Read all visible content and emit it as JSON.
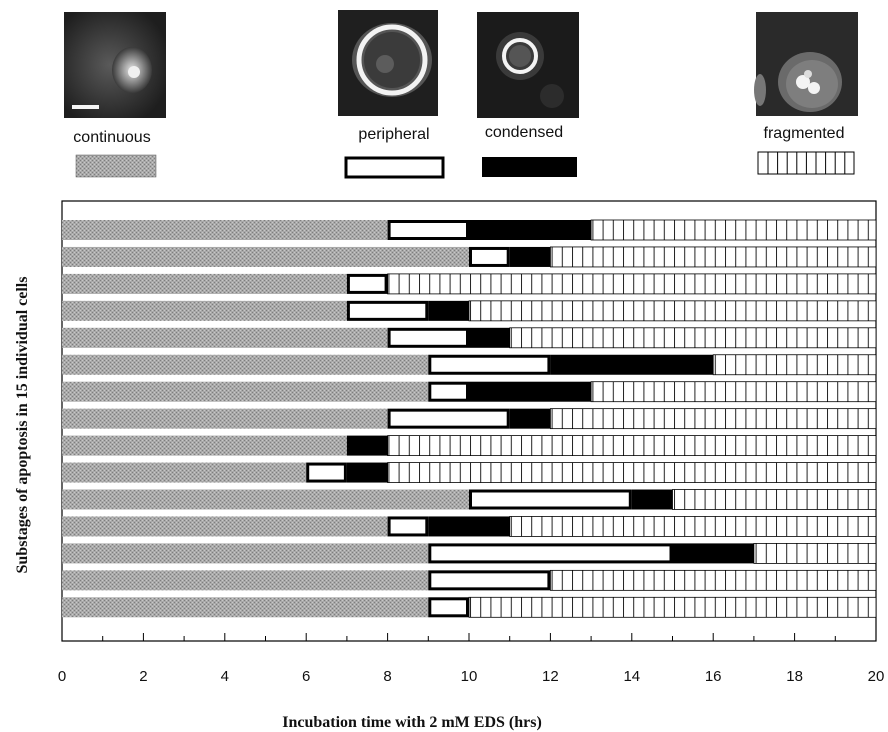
{
  "legend": [
    {
      "key": "continuous",
      "label": "continuous"
    },
    {
      "key": "peripheral",
      "label": "peripheral"
    },
    {
      "key": "condensed",
      "label": "condensed"
    },
    {
      "key": "fragmented",
      "label": "fragmented"
    }
  ],
  "chart_data": {
    "type": "bar",
    "orientation": "horizontal-stacked",
    "title": "",
    "xlabel": "Incubation time with 2 mM EDS (hrs)",
    "ylabel": "Substages of apoptosis in 15 individual cells",
    "xlim": [
      0,
      20
    ],
    "xticks": [
      0,
      2,
      4,
      6,
      8,
      10,
      12,
      14,
      16,
      18,
      20
    ],
    "grid": false,
    "legend_position": "top",
    "stages": [
      "continuous",
      "peripheral",
      "condensed",
      "fragmented"
    ],
    "cells": [
      {
        "boundaries": [
          8,
          10,
          13
        ]
      },
      {
        "boundaries": [
          10,
          11,
          12
        ]
      },
      {
        "boundaries": [
          7,
          8,
          8
        ]
      },
      {
        "boundaries": [
          7,
          9,
          10
        ]
      },
      {
        "boundaries": [
          8,
          10,
          11
        ]
      },
      {
        "boundaries": [
          9,
          12,
          16
        ]
      },
      {
        "boundaries": [
          9,
          10,
          13
        ]
      },
      {
        "boundaries": [
          8,
          11,
          12
        ]
      },
      {
        "boundaries": [
          7,
          7,
          8
        ]
      },
      {
        "boundaries": [
          6,
          7,
          8
        ]
      },
      {
        "boundaries": [
          10,
          14,
          15
        ]
      },
      {
        "boundaries": [
          8,
          9,
          11
        ]
      },
      {
        "boundaries": [
          9,
          15,
          17
        ]
      },
      {
        "boundaries": [
          9,
          12,
          12
        ]
      },
      {
        "boundaries": [
          9,
          10,
          10
        ]
      }
    ]
  }
}
